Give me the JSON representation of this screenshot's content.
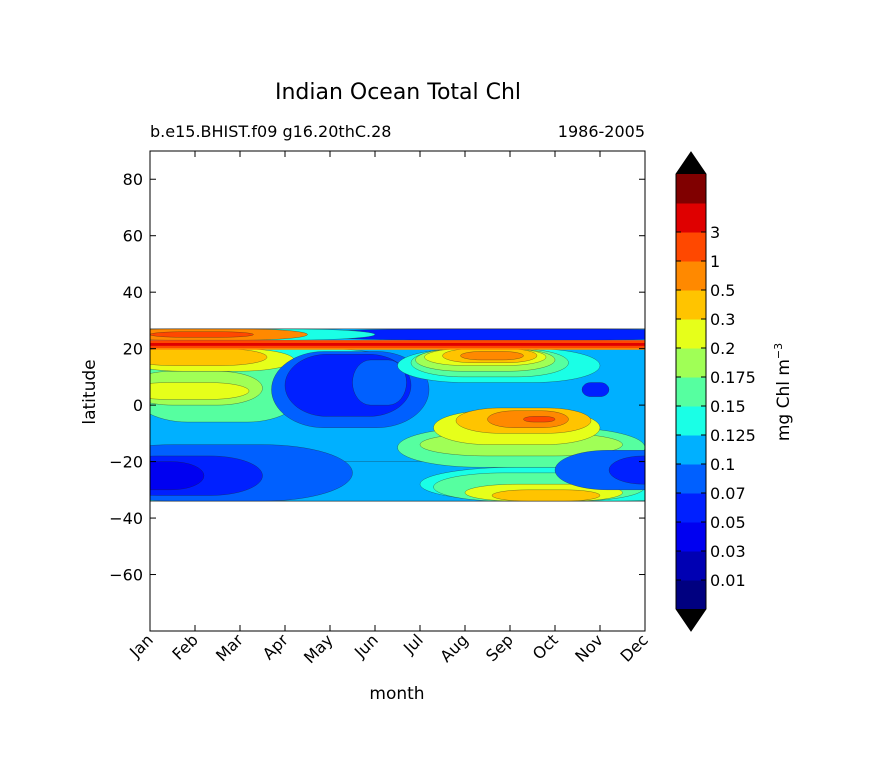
{
  "chart_data": {
    "type": "heatmap",
    "title": "Indian Ocean Total Chl",
    "subtitle_left": "b.e15.BHIST.f09 g16.20thC.28",
    "subtitle_right": "1986-2005",
    "xlabel": "month",
    "ylabel": "latitude",
    "x_categories": [
      "Jan",
      "Feb",
      "Mar",
      "Apr",
      "May",
      "Jun",
      "Jul",
      "Aug",
      "Sep",
      "Oct",
      "Nov",
      "Dec"
    ],
    "ylim": [
      -80,
      90
    ],
    "y_ticks": [
      80,
      60,
      40,
      20,
      0,
      -20,
      -40,
      -60
    ],
    "y_tick_labels": [
      "80",
      "60",
      "40",
      "20",
      "0",
      "−20",
      "−40",
      "−60"
    ],
    "data_lat_range": [
      -34,
      27
    ],
    "colorbar": {
      "label": "mg Chl m",
      "label_exponent": "−3",
      "levels": [
        "0.01",
        "0.03",
        "0.05",
        "0.07",
        "0.1",
        "0.125",
        "0.15",
        "0.175",
        "0.2",
        "0.3",
        "0.5",
        "1",
        "3"
      ],
      "colors": [
        "#000080",
        "#0000b3",
        "#0000f1",
        "#0020ff",
        "#0060ff",
        "#00b0ff",
        "#1affe6",
        "#56ffa0",
        "#a0ff56",
        "#e6ff1a",
        "#ffc400",
        "#ff8900",
        "#ff4800",
        "#df0000",
        "#800000"
      ],
      "extend_under_color": "#000000",
      "extend_over_color": "#000000"
    },
    "features": [
      {
        "desc": "background band",
        "lat": [
          -34,
          27
        ],
        "level": "0.07-0.1"
      },
      {
        "desc": "high chl band near 20N",
        "lat": [
          20,
          23
        ],
        "month_range": [
          "Jan",
          "Dec"
        ],
        "level": "0.5-1"
      },
      {
        "desc": "low chl subtropical gyre",
        "lat": [
          -30,
          -20
        ],
        "month_range": [
          "Jan",
          "Apr"
        ],
        "level": "0.03-0.05"
      },
      {
        "desc": "equatorial bloom",
        "lat": [
          -10,
          2
        ],
        "month_range": [
          "Jul",
          "Oct"
        ],
        "level": "0.3-0.5"
      },
      {
        "desc": "arabian sea bloom",
        "lat": [
          15,
          20
        ],
        "month_range": [
          "Jul",
          "Sep"
        ],
        "level": "0.3-0.5"
      },
      {
        "desc": "southern bloom",
        "lat": [
          -34,
          -28
        ],
        "month_range": [
          "Aug",
          "Oct"
        ],
        "level": "0.2-0.3"
      },
      {
        "desc": "oligotrophic patch",
        "lat": [
          5,
          18
        ],
        "month_range": [
          "Apr",
          "Jun"
        ],
        "level": "0.05-0.07"
      }
    ]
  }
}
